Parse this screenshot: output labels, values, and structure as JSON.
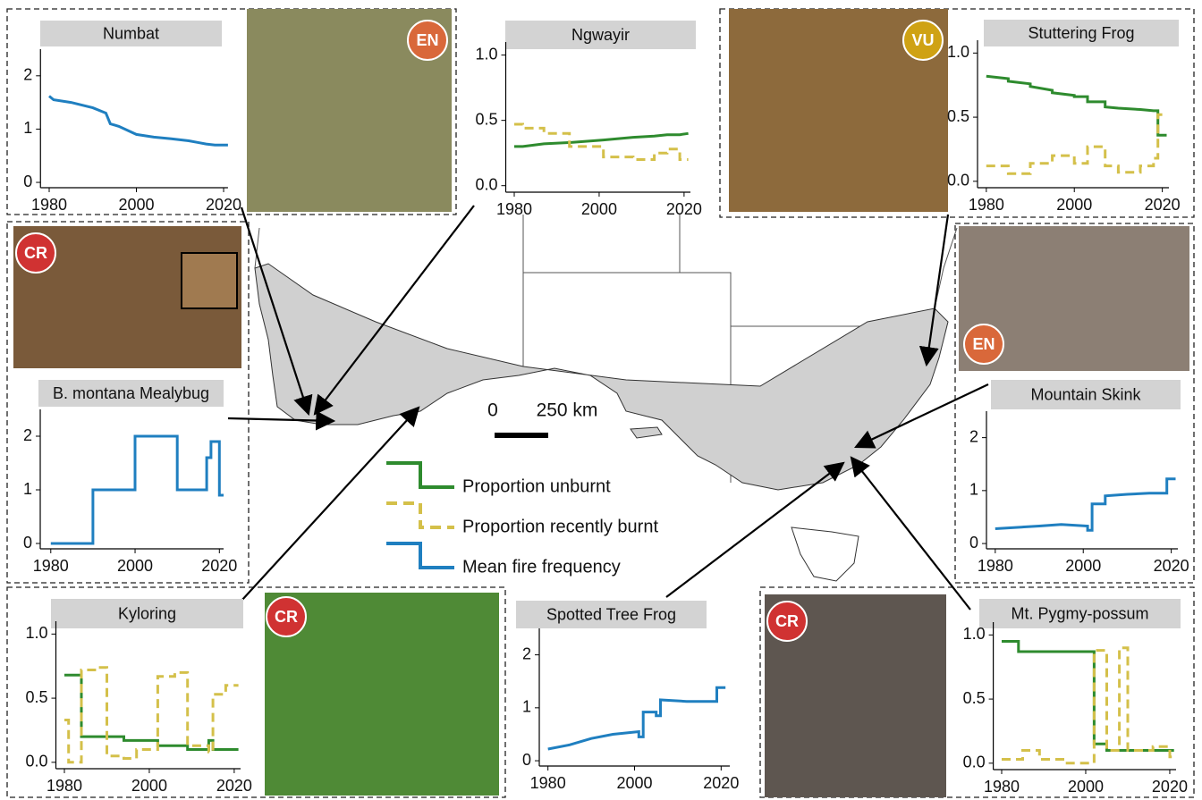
{
  "chart_data": [
    {
      "type": "line",
      "title": "Numbat",
      "x": [
        1980,
        1981,
        1985,
        1990,
        1993,
        1994,
        1996,
        2000,
        2004,
        2008,
        2012,
        2014,
        2016,
        2018,
        2021
      ],
      "series": [
        {
          "name": "Mean fire frequency",
          "color": "#1f7fc0",
          "values": [
            1.62,
            1.55,
            1.5,
            1.4,
            1.3,
            1.1,
            1.05,
            0.9,
            0.85,
            0.82,
            0.78,
            0.75,
            0.72,
            0.7,
            0.7
          ]
        }
      ],
      "xlim": [
        1978,
        2021
      ],
      "ylim": [
        -0.1,
        2.5
      ],
      "xticks": [
        1980,
        2000,
        2020
      ],
      "yticks": [
        0,
        1,
        2
      ]
    },
    {
      "type": "line",
      "title": "Ngwayir",
      "x": [
        1980,
        1982,
        1982,
        1987,
        1987,
        1993,
        1993,
        2001,
        2001,
        2008,
        2008,
        2013,
        2013,
        2016,
        2016,
        2019,
        2019,
        2021
      ],
      "series": [
        {
          "name": "Proportion unburnt",
          "color": "#2e8b2e",
          "values": [
            0.3,
            0.3,
            0.3,
            0.32,
            0.32,
            0.33,
            0.33,
            0.35,
            0.35,
            0.37,
            0.37,
            0.38,
            0.38,
            0.39,
            0.39,
            0.39,
            0.39,
            0.4
          ]
        },
        {
          "name": "Proportion recently burnt",
          "color": "#d4c04a",
          "dash": true,
          "values": [
            0.47,
            0.47,
            0.44,
            0.44,
            0.4,
            0.4,
            0.3,
            0.3,
            0.22,
            0.22,
            0.2,
            0.2,
            0.25,
            0.25,
            0.28,
            0.28,
            0.2,
            0.2
          ]
        }
      ],
      "xlim": [
        1978,
        2021.5
      ],
      "ylim": [
        -0.05,
        1.1
      ],
      "xticks": [
        1980,
        2000,
        2020
      ],
      "yticks": [
        {
          "value": 0,
          "label": "0.0"
        },
        {
          "value": 0.5,
          "label": "0.5"
        },
        {
          "value": 1,
          "label": "1.0"
        }
      ]
    },
    {
      "type": "line",
      "title": "Stuttering Frog",
      "x": [
        1980,
        1985,
        1985,
        1990,
        1990,
        1995,
        1995,
        2000,
        2000,
        2003,
        2003,
        2007,
        2007,
        2010,
        2010,
        2015,
        2015,
        2018,
        2018,
        2019,
        2019,
        2021
      ],
      "series": [
        {
          "name": "Proportion unburnt",
          "color": "#2e8b2e",
          "values": [
            0.82,
            0.8,
            0.78,
            0.76,
            0.74,
            0.71,
            0.69,
            0.67,
            0.66,
            0.66,
            0.62,
            0.62,
            0.58,
            0.57,
            0.57,
            0.56,
            0.56,
            0.55,
            0.55,
            0.55,
            0.36,
            0.36
          ]
        },
        {
          "name": "Proportion recently burnt",
          "color": "#d4c04a",
          "dash": true,
          "values": [
            0.12,
            0.12,
            0.06,
            0.06,
            0.14,
            0.14,
            0.2,
            0.2,
            0.14,
            0.14,
            0.27,
            0.27,
            0.12,
            0.12,
            0.07,
            0.07,
            0.12,
            0.12,
            0.18,
            0.18,
            0.52,
            0.52
          ]
        }
      ],
      "xlim": [
        1978,
        2021.5
      ],
      "ylim": [
        -0.05,
        1.1
      ],
      "xticks": [
        1980,
        2000,
        2020
      ],
      "yticks": [
        {
          "value": 0,
          "label": "0.0"
        },
        {
          "value": 0.5,
          "label": "0.5"
        },
        {
          "value": 1,
          "label": "1.0"
        }
      ]
    },
    {
      "type": "line",
      "title": "B. montana Mealybug",
      "x": [
        1980,
        1990,
        1990,
        2000,
        2000,
        2010,
        2010,
        2017,
        2017,
        2018,
        2018,
        2020,
        2020,
        2021
      ],
      "series": [
        {
          "name": "Mean fire frequency",
          "color": "#1f7fc0",
          "values": [
            0,
            0,
            1,
            1,
            2,
            2,
            1,
            1,
            1.6,
            1.6,
            1.9,
            1.9,
            0.9,
            0.9
          ]
        }
      ],
      "xlim": [
        1977.5,
        2021
      ],
      "ylim": [
        -0.1,
        2.5
      ],
      "xticks": [
        1980,
        2000,
        2020
      ],
      "yticks": [
        0,
        1,
        2
      ]
    },
    {
      "type": "line",
      "title": "Mountain Skink",
      "x": [
        1980,
        1990,
        1995,
        2001,
        2001,
        2002,
        2002,
        2005,
        2005,
        2010,
        2015,
        2019,
        2019,
        2021
      ],
      "series": [
        {
          "name": "Mean fire frequency",
          "color": "#1f7fc0",
          "values": [
            0.28,
            0.33,
            0.36,
            0.33,
            0.25,
            0.25,
            0.75,
            0.75,
            0.9,
            0.93,
            0.95,
            0.95,
            1.22,
            1.22
          ]
        }
      ],
      "xlim": [
        1978,
        2021.5
      ],
      "ylim": [
        -0.1,
        2.5
      ],
      "xticks": [
        1980,
        2000,
        2020
      ],
      "yticks": [
        0,
        1,
        2
      ]
    },
    {
      "type": "line",
      "title": "Kyloring",
      "x": [
        1980,
        1981,
        1981,
        1984,
        1984,
        1988,
        1988,
        1990,
        1990,
        1994,
        1994,
        1997,
        1997,
        2002,
        2002,
        2006,
        2006,
        2009,
        2009,
        2014,
        2014,
        2015,
        2015,
        2018,
        2018,
        2021
      ],
      "series": [
        {
          "name": "Proportion unburnt",
          "color": "#2e8b2e",
          "values": [
            0.68,
            0.68,
            0.68,
            0.68,
            0.2,
            0.2,
            0.2,
            0.2,
            0.2,
            0.2,
            0.17,
            0.17,
            0.17,
            0.17,
            0.13,
            0.13,
            0.13,
            0.13,
            0.1,
            0.1,
            0.17,
            0.17,
            0.1,
            0.1,
            0.1,
            0.1
          ]
        },
        {
          "name": "Proportion recently burnt",
          "color": "#d4c04a",
          "dash": true,
          "values": [
            0.33,
            0.33,
            0.0,
            0.0,
            0.72,
            0.72,
            0.74,
            0.74,
            0.05,
            0.05,
            0.03,
            0.03,
            0.1,
            0.1,
            0.67,
            0.67,
            0.7,
            0.7,
            0.13,
            0.13,
            0.08,
            0.08,
            0.53,
            0.53,
            0.6,
            0.6
          ]
        }
      ],
      "xlim": [
        1978,
        2021.5
      ],
      "ylim": [
        -0.05,
        1.1
      ],
      "xticks": [
        1980,
        2000,
        2020
      ],
      "yticks": [
        {
          "value": 0,
          "label": "0.0"
        },
        {
          "value": 0.5,
          "label": "0.5"
        },
        {
          "value": 1,
          "label": "1.0"
        }
      ]
    },
    {
      "type": "line",
      "title": "Spotted Tree Frog",
      "x": [
        1980,
        1985,
        1990,
        1995,
        2001,
        2001,
        2002,
        2002,
        2005,
        2005,
        2006,
        2006,
        2012,
        2019,
        2019,
        2021
      ],
      "series": [
        {
          "name": "Mean fire frequency",
          "color": "#1f7fc0",
          "values": [
            0.22,
            0.3,
            0.42,
            0.5,
            0.55,
            0.45,
            0.45,
            0.92,
            0.92,
            0.85,
            0.85,
            1.15,
            1.12,
            1.12,
            1.38,
            1.38
          ]
        }
      ],
      "xlim": [
        1978,
        2022
      ],
      "ylim": [
        -0.1,
        2.5
      ],
      "xticks": [
        1980,
        2000,
        2020
      ],
      "yticks": [
        0,
        1,
        2
      ]
    },
    {
      "type": "line",
      "title": "Mt. Pygmy-possum",
      "x": [
        1980,
        1984,
        1984,
        1985,
        1985,
        1989,
        1989,
        1995,
        1995,
        2002,
        2002,
        2005,
        2005,
        2008,
        2008,
        2010,
        2010,
        2016,
        2016,
        2020,
        2020,
        2021
      ],
      "series": [
        {
          "name": "Proportion unburnt",
          "color": "#2e8b2e",
          "values": [
            0.95,
            0.95,
            0.87,
            0.87,
            0.87,
            0.87,
            0.87,
            0.87,
            0.87,
            0.87,
            0.15,
            0.15,
            0.1,
            0.1,
            0.1,
            0.1,
            0.1,
            0.1,
            0.1,
            0.1,
            0.1,
            0.1
          ]
        },
        {
          "name": "Proportion recently burnt",
          "color": "#d4c04a",
          "dash": true,
          "values": [
            0.03,
            0.03,
            0.03,
            0.03,
            0.1,
            0.1,
            0.03,
            0.03,
            0.0,
            0.0,
            0.88,
            0.88,
            0.1,
            0.1,
            0.9,
            0.9,
            0.1,
            0.1,
            0.13,
            0.13,
            0.05,
            0.05
          ]
        }
      ],
      "xlim": [
        1978,
        2021.5
      ],
      "ylim": [
        -0.05,
        1.1
      ],
      "xticks": [
        1980,
        2000,
        2020
      ],
      "yticks": [
        {
          "value": 0,
          "label": "0.0"
        },
        {
          "value": 0.5,
          "label": "0.5"
        },
        {
          "value": 1,
          "label": "1.0"
        }
      ]
    }
  ],
  "legend": [
    {
      "name": "Proportion unburnt",
      "color": "#2e8b2e"
    },
    {
      "name": "Proportion recently burnt",
      "color": "#d4c04a",
      "dash": true
    },
    {
      "name": "Mean fire frequency",
      "color": "#1f7fc0"
    }
  ],
  "map": {
    "scale_labels": [
      "0",
      "250 km"
    ]
  },
  "photos": [
    {
      "badge": "EN",
      "color": "#d9683a"
    },
    {
      "badge": "VU",
      "color": "#cfa214"
    },
    {
      "badge": "CR",
      "color": "#d03232"
    },
    {
      "badge": "EN",
      "color": "#d9683a"
    },
    {
      "badge": "CR",
      "color": "#d03232"
    },
    {
      "badge": "CR",
      "color": "#d03232"
    }
  ]
}
